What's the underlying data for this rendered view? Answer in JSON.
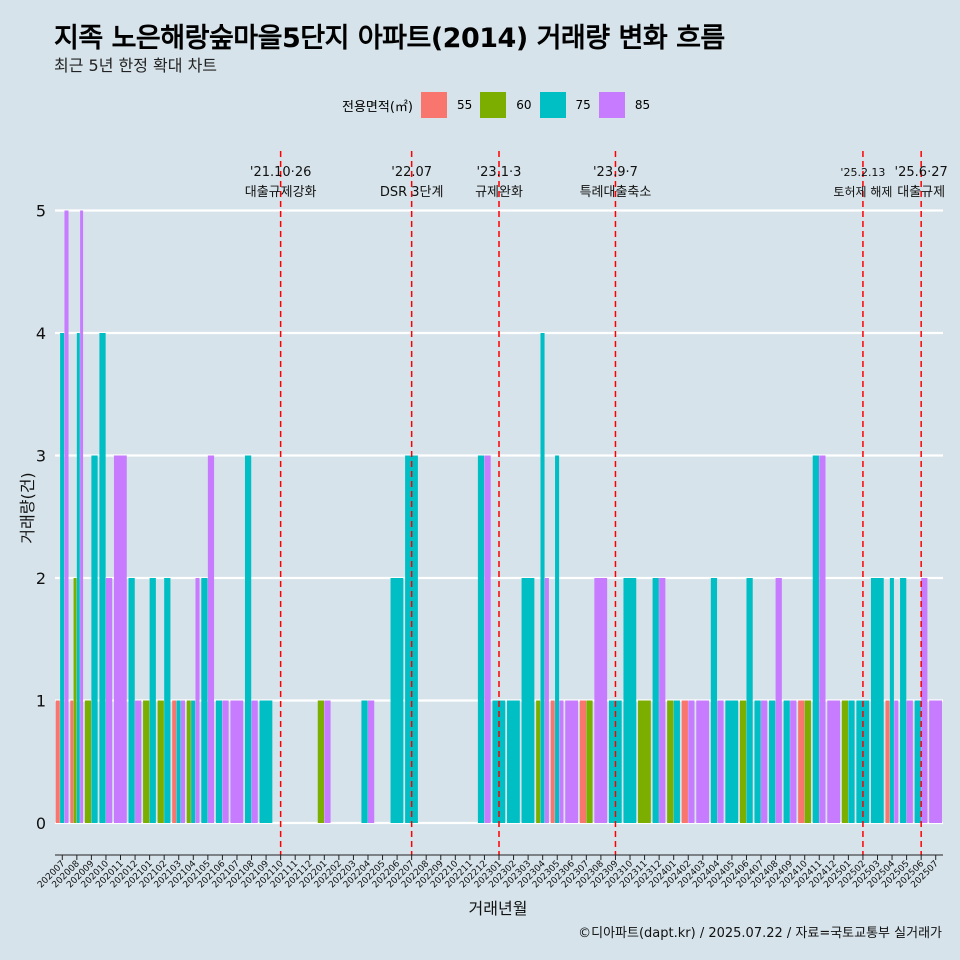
{
  "title": "지족 노은해랑숲마을5단지 아파트(2014) 거래량 변화 흐름",
  "subtitle": "최근 5년 한정 확대 차트",
  "footer": "©디아파트(dapt.kr) / 2025.07.22 / 자료=국토교통부 실거래가",
  "legend": {
    "title": "전용면적(㎡)",
    "items": [
      {
        "label": "55",
        "color": "#f8766d"
      },
      {
        "label": "60",
        "color": "#7cae00"
      },
      {
        "label": "75",
        "color": "#00bfc4"
      },
      {
        "label": "85",
        "color": "#c77cff"
      }
    ]
  },
  "chart_data": {
    "type": "bar",
    "xlabel": "거래년월",
    "ylabel": "거래량(건)",
    "ylim": [
      0,
      5
    ],
    "yticks": [
      0,
      1,
      2,
      3,
      4,
      5
    ],
    "categories": [
      "202007",
      "202008",
      "202009",
      "202010",
      "202011",
      "202012",
      "202101",
      "202102",
      "202103",
      "202104",
      "202105",
      "202106",
      "202107",
      "202108",
      "202109",
      "202110",
      "202111",
      "202112",
      "202201",
      "202202",
      "202203",
      "202204",
      "202205",
      "202206",
      "202207",
      "202208",
      "202209",
      "202210",
      "202211",
      "202212",
      "202301",
      "202302",
      "202303",
      "202304",
      "202305",
      "202306",
      "202307",
      "202308",
      "202309",
      "202310",
      "202311",
      "202312",
      "202401",
      "202402",
      "202403",
      "202404",
      "202405",
      "202406",
      "202407",
      "202408",
      "202409",
      "202410",
      "202411",
      "202412",
      "202501",
      "202502",
      "202503",
      "202504",
      "202505",
      "202506",
      "202507"
    ],
    "series": [
      {
        "name": "55",
        "color": "#f8766d",
        "values": [
          1,
          1,
          0,
          0,
          0,
          0,
          0,
          0,
          1,
          0,
          0,
          0,
          0,
          0,
          0,
          0,
          0,
          0,
          0,
          0,
          0,
          0,
          0,
          0,
          0,
          0,
          0,
          0,
          0,
          0,
          0,
          0,
          0,
          0,
          1,
          0,
          1,
          0,
          0,
          0,
          0,
          0,
          0,
          1,
          0,
          0,
          0,
          0,
          0,
          0,
          0,
          1,
          0,
          0,
          0,
          0,
          0,
          1,
          0,
          0,
          0
        ]
      },
      {
        "name": "60",
        "color": "#7cae00",
        "values": [
          0,
          2,
          1,
          0,
          0,
          0,
          1,
          1,
          0,
          1,
          0,
          0,
          0,
          0,
          0,
          0,
          0,
          0,
          1,
          0,
          0,
          0,
          0,
          0,
          0,
          0,
          0,
          0,
          0,
          0,
          0,
          0,
          0,
          1,
          0,
          0,
          1,
          0,
          0,
          0,
          1,
          0,
          1,
          0,
          0,
          0,
          0,
          1,
          0,
          0,
          0,
          1,
          0,
          0,
          1,
          0,
          0,
          0,
          0,
          0,
          0
        ]
      },
      {
        "name": "75",
        "color": "#00bfc4",
        "values": [
          4,
          4,
          3,
          4,
          0,
          2,
          2,
          2,
          1,
          1,
          2,
          1,
          0,
          3,
          1,
          0,
          0,
          0,
          0,
          0,
          0,
          1,
          0,
          2,
          3,
          0,
          0,
          0,
          0,
          3,
          1,
          1,
          2,
          4,
          3,
          0,
          0,
          0,
          1,
          2,
          0,
          2,
          1,
          0,
          0,
          2,
          1,
          2,
          1,
          1,
          1,
          0,
          3,
          0,
          1,
          1,
          2,
          2,
          2,
          1,
          0
        ]
      },
      {
        "name": "85",
        "color": "#c77cff",
        "values": [
          5,
          5,
          0,
          2,
          3,
          1,
          0,
          0,
          1,
          2,
          3,
          1,
          1,
          1,
          0,
          0,
          0,
          0,
          1,
          0,
          0,
          1,
          0,
          0,
          0,
          0,
          0,
          0,
          0,
          3,
          0,
          0,
          0,
          2,
          1,
          1,
          0,
          2,
          0,
          0,
          0,
          2,
          0,
          1,
          1,
          1,
          0,
          0,
          1,
          2,
          1,
          0,
          3,
          1,
          0,
          0,
          0,
          1,
          1,
          2,
          1
        ]
      }
    ],
    "events": [
      {
        "month": "202110",
        "date": "'21.10·26",
        "label": "대출규제강화"
      },
      {
        "month": "202207",
        "date": "'22.07",
        "label": "DSR 3단계"
      },
      {
        "month": "202301",
        "date": "'23.1·3",
        "label": "규제완화"
      },
      {
        "month": "202309",
        "date": "'23.9·7",
        "label": "특례대출축소"
      },
      {
        "month": "202502",
        "date": "'25.2.13",
        "label": "토허제 해제"
      },
      {
        "month": "202506",
        "date": "'25.6·27",
        "label": "대출규제"
      }
    ]
  }
}
